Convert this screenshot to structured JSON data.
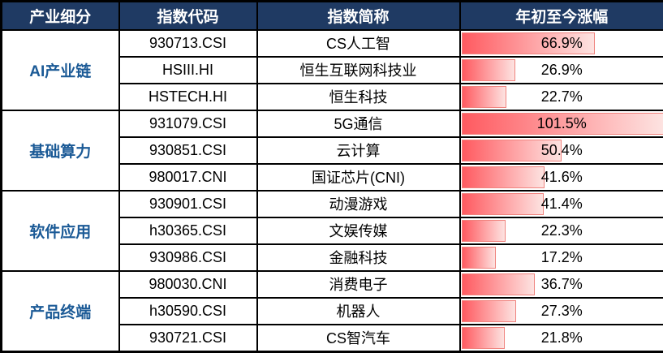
{
  "colors": {
    "header_bg": "#1F3A63",
    "header_text": "#FFFFFF",
    "category_text": "#1B5A96",
    "bar_start": "#FF5A60",
    "bar_end": "#FDE3E1",
    "bar_border": "#F0837E",
    "grid": "#000000"
  },
  "table": {
    "bar_max": 101.5,
    "headers": [
      "产业细分",
      "指数代码",
      "指数简称",
      "年初至今涨幅"
    ],
    "groups": [
      {
        "category": "AI产业链",
        "rows": [
          {
            "code": "930713.CSI",
            "name": "CS人工智",
            "pct": 66.9,
            "pct_label": "66.9%"
          },
          {
            "code": "HSIII.HI",
            "name": "恒生互联网科技业",
            "pct": 26.9,
            "pct_label": "26.9%"
          },
          {
            "code": "HSTECH.HI",
            "name": "恒生科技",
            "pct": 22.7,
            "pct_label": "22.7%"
          }
        ]
      },
      {
        "category": "基础算力",
        "rows": [
          {
            "code": "931079.CSI",
            "name": "5G通信",
            "pct": 101.5,
            "pct_label": "101.5%"
          },
          {
            "code": "930851.CSI",
            "name": "云计算",
            "pct": 50.4,
            "pct_label": "50.4%"
          },
          {
            "code": "980017.CNI",
            "name": "国证芯片(CNI)",
            "pct": 41.6,
            "pct_label": "41.6%"
          }
        ]
      },
      {
        "category": "软件应用",
        "rows": [
          {
            "code": "930901.CSI",
            "name": "动漫游戏",
            "pct": 41.4,
            "pct_label": "41.4%"
          },
          {
            "code": "h30365.CSI",
            "name": "文娱传媒",
            "pct": 22.3,
            "pct_label": "22.3%"
          },
          {
            "code": "930986.CSI",
            "name": "金融科技",
            "pct": 17.2,
            "pct_label": "17.2%"
          }
        ]
      },
      {
        "category": "产品终端",
        "rows": [
          {
            "code": "980030.CNI",
            "name": "消费电子",
            "pct": 36.7,
            "pct_label": "36.7%"
          },
          {
            "code": "h30590.CSI",
            "name": "机器人",
            "pct": 27.3,
            "pct_label": "27.3%"
          },
          {
            "code": "930721.CSI",
            "name": "CS智汽车",
            "pct": 21.8,
            "pct_label": "21.8%"
          }
        ]
      }
    ]
  },
  "chart_data": {
    "type": "table",
    "title": "",
    "columns": [
      "产业细分",
      "指数代码",
      "指数简称",
      "年初至今涨幅"
    ],
    "rows": [
      [
        "AI产业链",
        "930713.CSI",
        "CS人工智",
        "66.9%"
      ],
      [
        "AI产业链",
        "HSIII.HI",
        "恒生互联网科技业",
        "26.9%"
      ],
      [
        "AI产业链",
        "HSTECH.HI",
        "恒生科技",
        "22.7%"
      ],
      [
        "基础算力",
        "931079.CSI",
        "5G通信",
        "101.5%"
      ],
      [
        "基础算力",
        "930851.CSI",
        "云计算",
        "50.4%"
      ],
      [
        "基础算力",
        "980017.CNI",
        "国证芯片(CNI)",
        "41.6%"
      ],
      [
        "软件应用",
        "930901.CSI",
        "动漫游戏",
        "41.4%"
      ],
      [
        "软件应用",
        "h30365.CSI",
        "文娱传媒",
        "22.3%"
      ],
      [
        "软件应用",
        "930986.CSI",
        "金融科技",
        "17.2%"
      ],
      [
        "产品终端",
        "980030.CNI",
        "消费电子",
        "36.7%"
      ],
      [
        "产品终端",
        "h30590.CSI",
        "机器人",
        "27.3%"
      ],
      [
        "产品终端",
        "930721.CSI",
        "CS智汽车",
        "21.8%"
      ]
    ],
    "bar_column": "年初至今涨幅",
    "bar_values": [
      66.9,
      26.9,
      22.7,
      101.5,
      50.4,
      41.6,
      41.4,
      22.3,
      17.2,
      36.7,
      27.3,
      21.8
    ],
    "bar_scale_max": 101.5,
    "legend_position": "none",
    "grid": true
  }
}
